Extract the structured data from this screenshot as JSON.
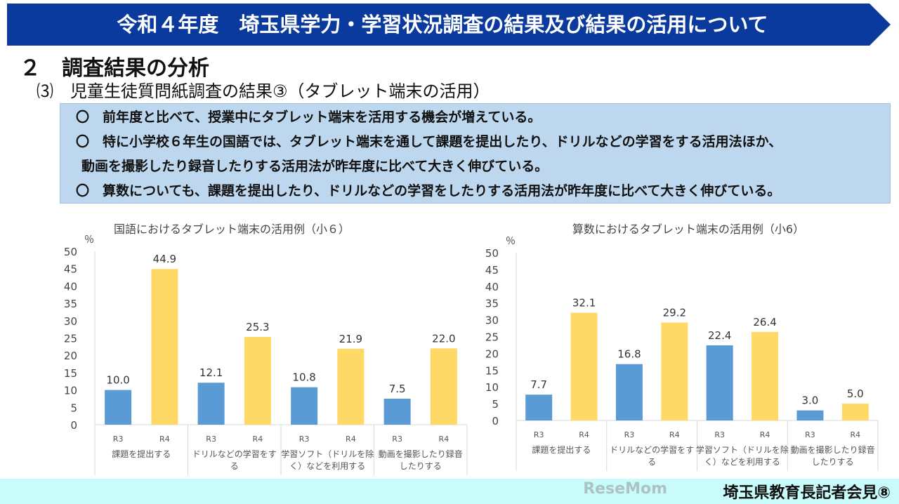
{
  "header": {
    "title": "令和４年度　埼玉県学力・学習状況調査の結果及び結果の活用について"
  },
  "section": {
    "heading": "２　調査結果の分析",
    "subheading": "⑶　児童生徒質問紙調査の結果③（タブレット端末の活用）"
  },
  "summary": [
    "〇　前年度と比べて、授業中にタブレット端末を活用する機会が増えている。",
    "〇　特に小学校６年生の国語では、タブレット端末を通して課題を提出したり、ドリルなどの学習をする活用法ほか、",
    "動画を撮影したり録音したりする活用法が昨年度に比べて大きく伸びている。",
    "〇　算数についても、課題を提出したり、ドリルなどの学習をしたりする活用法が昨年度に比べて大きく伸びている。"
  ],
  "footer": {
    "text": "埼玉県教育長記者会見⑧",
    "watermark": "ReseMom"
  },
  "chart_data": [
    {
      "type": "bar",
      "title": "国語におけるタブレット端末の活用例（小６）",
      "ylabel": "％",
      "ylim": [
        0,
        50
      ],
      "yticks": [
        0,
        5,
        10,
        15,
        20,
        25,
        30,
        35,
        40,
        45,
        50
      ],
      "categories": [
        "課題を提出する",
        "ドリルなどの学習をする",
        "学習ソフト（ドリルを除く）などを利用する",
        "動画を撮影したり録音したりする"
      ],
      "category_lines": [
        [
          "課題を提出する"
        ],
        [
          "ドリルなどの学習をす",
          "る"
        ],
        [
          "学習ソフト（ドリルを除",
          "く）などを利用する"
        ],
        [
          "動画を撮影したり録音",
          "したりする"
        ]
      ],
      "series": [
        {
          "name": "R3",
          "color": "#5b9bd5",
          "values": [
            10.0,
            12.1,
            10.8,
            7.5
          ]
        },
        {
          "name": "R4",
          "color": "#ffd966",
          "values": [
            44.9,
            25.3,
            21.9,
            22.0
          ]
        }
      ]
    },
    {
      "type": "bar",
      "title": "算数におけるタブレット端末の活用例（小6）",
      "ylabel": "％",
      "ylim": [
        0,
        50
      ],
      "yticks": [
        0,
        5,
        10,
        15,
        20,
        25,
        30,
        35,
        40,
        45,
        50
      ],
      "categories": [
        "課題を提出する",
        "ドリルなどの学習をする",
        "学習ソフト（ドリルを除く）などを利用する",
        "動画を撮影したり録音したりする"
      ],
      "category_lines": [
        [
          "課題を提出する"
        ],
        [
          "ドリルなどの学習をす",
          "る"
        ],
        [
          "学習ソフト（ドリルを除",
          "く）などを利用する"
        ],
        [
          "動画を撮影したり録音",
          "したりする"
        ]
      ],
      "series": [
        {
          "name": "R3",
          "color": "#5b9bd5",
          "values": [
            7.7,
            16.8,
            22.4,
            3.0
          ]
        },
        {
          "name": "R4",
          "color": "#ffd966",
          "values": [
            32.1,
            29.2,
            26.4,
            5.0
          ]
        }
      ]
    }
  ]
}
